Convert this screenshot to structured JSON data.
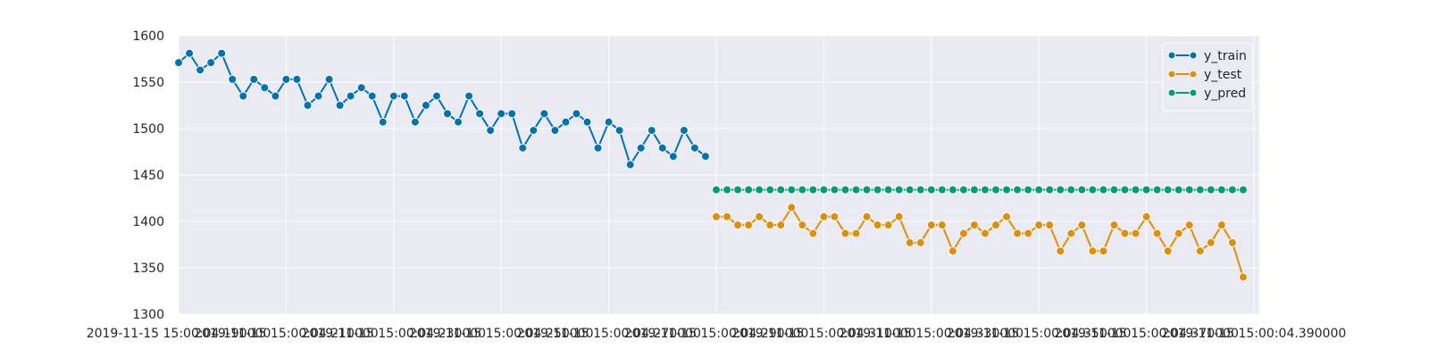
{
  "chart_data": {
    "type": "line",
    "title": "",
    "xlabel": "",
    "ylabel": "",
    "ylim": [
      1300,
      1600
    ],
    "yticks": [
      1300,
      1350,
      1400,
      1450,
      1500,
      1550,
      1600
    ],
    "xlim": [
      0,
      100.5
    ],
    "xtick_labels": [
      {
        "x": 0,
        "label": "2019-11-15 15:00:04.190000"
      },
      {
        "x": 10,
        "label": "2019-11-15 15:00:04.210000"
      },
      {
        "x": 20,
        "label": "2019-11-15 15:00:04.230000"
      },
      {
        "x": 30,
        "label": "2019-11-15 15:00:04.250000"
      },
      {
        "x": 40,
        "label": "2019-11-15 15:00:04.270000"
      },
      {
        "x": 50,
        "label": "2019-11-15 15:00:04.290000"
      },
      {
        "x": 60,
        "label": "2019-11-15 15:00:04.310000"
      },
      {
        "x": 70,
        "label": "2019-11-15 15:00:04.330000"
      },
      {
        "x": 80,
        "label": "2019-11-15 15:00:04.350000"
      },
      {
        "x": 90,
        "label": "2019-11-15 15:00:04.370000"
      },
      {
        "x": 100,
        "label": "2019-11-15 15:00:04.390000"
      }
    ],
    "grid": true,
    "legend_position": "top-right",
    "series": [
      {
        "name": "y_train",
        "color": "#0173b2",
        "x_start": 0,
        "values": [
          1571,
          1581,
          1563,
          1571,
          1581,
          1553,
          1535,
          1553,
          1544,
          1535,
          1553,
          1553,
          1525,
          1535,
          1553,
          1525,
          1535,
          1544,
          1535,
          1507,
          1535,
          1535,
          1507,
          1525,
          1535,
          1516,
          1507,
          1535,
          1516,
          1498,
          1516,
          1516,
          1479,
          1498,
          1516,
          1498,
          1507,
          1516,
          1507,
          1479,
          1507,
          1498,
          1461,
          1479,
          1498,
          1479,
          1470,
          1498,
          1479,
          1470
        ]
      },
      {
        "name": "y_test",
        "color": "#de8f05",
        "x_start": 50,
        "values": [
          1405,
          1405,
          1396,
          1396,
          1405,
          1396,
          1396,
          1415,
          1396,
          1387,
          1405,
          1405,
          1387,
          1387,
          1405,
          1396,
          1396,
          1405,
          1377,
          1377,
          1396,
          1396,
          1368,
          1387,
          1396,
          1387,
          1396,
          1405,
          1387,
          1387,
          1396,
          1396,
          1368,
          1387,
          1396,
          1368,
          1368,
          1396,
          1387,
          1387,
          1405,
          1387,
          1368,
          1387,
          1396,
          1368,
          1377,
          1396,
          1377,
          1340
        ]
      },
      {
        "name": "y_pred",
        "color": "#029e73",
        "x_start": 50,
        "values": [
          1434,
          1434,
          1434,
          1434,
          1434,
          1434,
          1434,
          1434,
          1434,
          1434,
          1434,
          1434,
          1434,
          1434,
          1434,
          1434,
          1434,
          1434,
          1434,
          1434,
          1434,
          1434,
          1434,
          1434,
          1434,
          1434,
          1434,
          1434,
          1434,
          1434,
          1434,
          1434,
          1434,
          1434,
          1434,
          1434,
          1434,
          1434,
          1434,
          1434,
          1434,
          1434,
          1434,
          1434,
          1434,
          1434,
          1434,
          1434,
          1434,
          1434
        ]
      }
    ]
  },
  "style": {
    "plot_background": "#eaeaf2",
    "grid_color": "#ffffff",
    "marker_edge": "#ffffff"
  }
}
